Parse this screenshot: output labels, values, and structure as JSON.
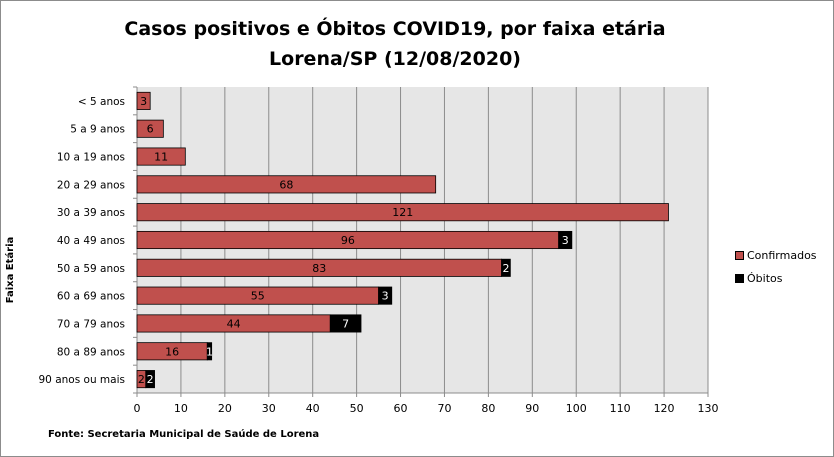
{
  "chart_data": {
    "type": "bar",
    "orientation": "horizontal",
    "stacked": true,
    "title_lines": [
      "Casos positivos e Óbitos COVID19, por faixa etária",
      "Lorena/SP (12/08/2020)"
    ],
    "ylabel": "Faixa Etária",
    "xlabel": "",
    "categories": [
      "< 5 anos",
      "5 a 9 anos",
      "10 a 19 anos",
      "20 a 29 anos",
      "30 a 39 anos",
      "40 a 49 anos",
      "50 a 59 anos",
      "60 a 69 anos",
      "70 a 79 anos",
      "80 a 89 anos",
      "90 anos ou mais"
    ],
    "series": [
      {
        "name": "Confirmados",
        "color": "#c0504d",
        "values": [
          3,
          6,
          11,
          68,
          121,
          96,
          83,
          55,
          44,
          16,
          2
        ]
      },
      {
        "name": "Óbitos",
        "color": "#000000",
        "values": [
          0,
          0,
          0,
          0,
          0,
          3,
          2,
          3,
          7,
          1,
          2
        ]
      }
    ],
    "xlim": [
      0,
      130
    ],
    "xticks": [
      0,
      10,
      20,
      30,
      40,
      50,
      60,
      70,
      80,
      90,
      100,
      110,
      120,
      130
    ],
    "grid": true,
    "plot_background": "#e6e6e6",
    "legend_position": "right"
  },
  "source_note": "Fonte: Secretaria Municipal  de Saúde de Lorena"
}
